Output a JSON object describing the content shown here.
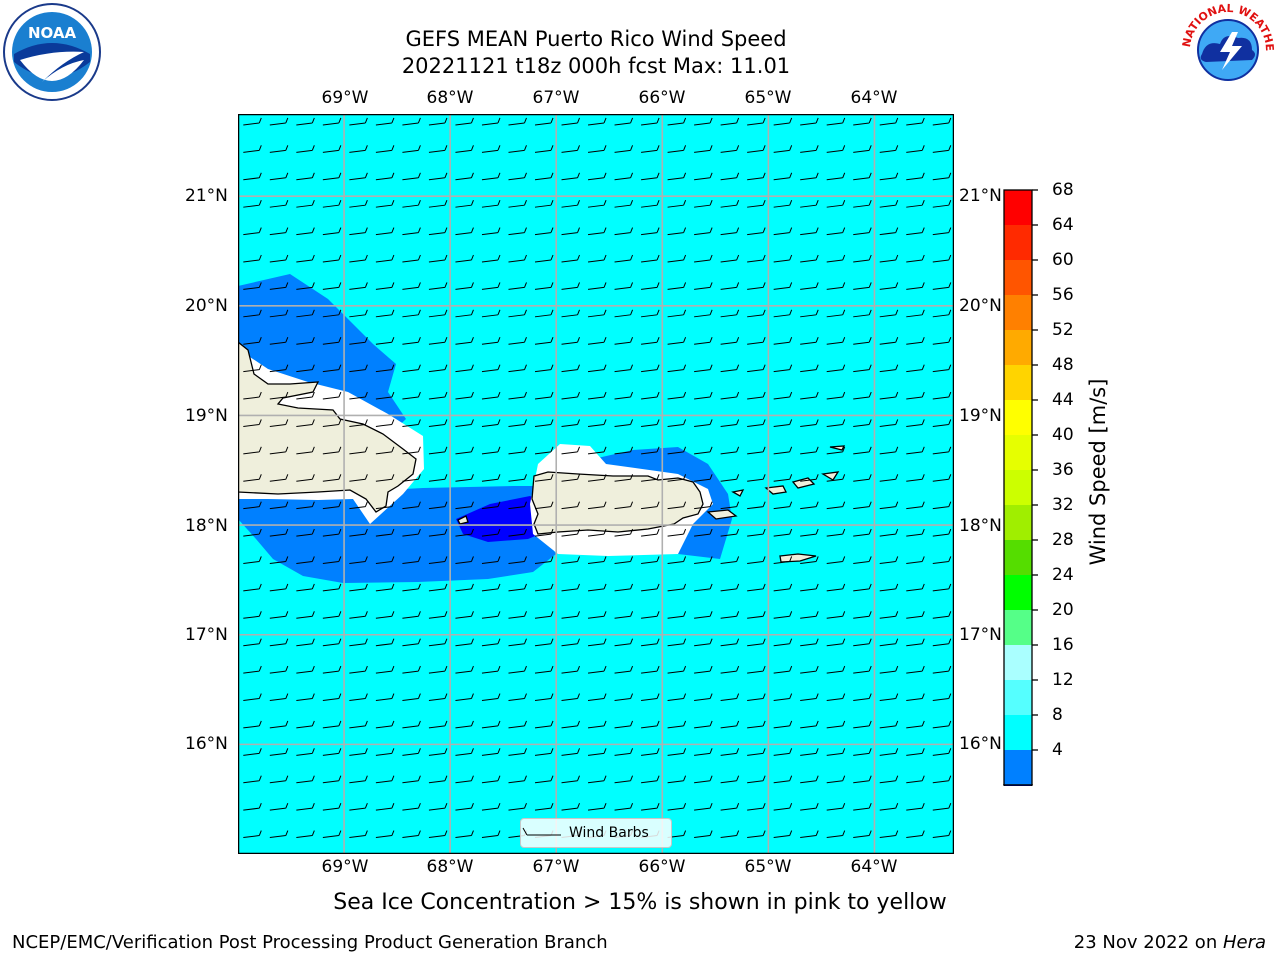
{
  "header": {
    "title_line1": "GEFS MEAN Puerto Rico Wind Speed",
    "title_line2": "20221121 t18z 000h fcst   Max: 11.01"
  },
  "map": {
    "lon_labels": [
      "69°W",
      "68°W",
      "67°W",
      "66°W",
      "65°W",
      "64°W"
    ],
    "lat_labels": [
      "21°N",
      "20°N",
      "19°N",
      "18°N",
      "17°N",
      "16°N"
    ],
    "lon_range": [
      -70.0,
      -63.25
    ],
    "lat_range": [
      15.0,
      21.75
    ],
    "fill_color": "#00ffff",
    "land_color": "#efefdc",
    "barb_direction_from": "east",
    "legend_label": "Wind Barbs"
  },
  "colorbar": {
    "label": "Wind Speed [m/s]",
    "ticks": [
      "68",
      "64",
      "60",
      "56",
      "52",
      "48",
      "44",
      "40",
      "36",
      "32",
      "28",
      "24",
      "20",
      "16",
      "12",
      "8",
      "4"
    ],
    "colors": [
      "#ff0000",
      "#ff2a00",
      "#ff5500",
      "#ff8000",
      "#ffaa00",
      "#ffd400",
      "#ffff00",
      "#e6ff00",
      "#ccff00",
      "#a0ee00",
      "#55dd00",
      "#00ff00",
      "#55ff88",
      "#aaffff",
      "#55ffff",
      "#00ffff",
      "#0080ff"
    ],
    "under_color": "#0000ff"
  },
  "caption": "Sea Ice Concentration > 15% is shown in pink to yellow",
  "footer": {
    "left": "NCEP/EMC/Verification Post Processing Product Generation Branch",
    "date": "23 Nov 2022 on ",
    "machine": "Hera"
  },
  "logos": {
    "noaa_text": "NOAA",
    "nws_text": "NATIONAL WEATHER SERVICE"
  }
}
